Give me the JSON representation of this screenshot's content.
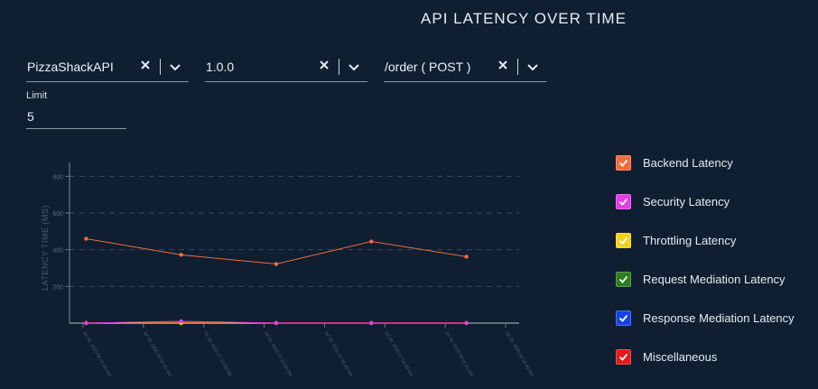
{
  "header": {
    "title": "API LATENCY OVER TIME"
  },
  "filters": {
    "api": {
      "value": "PizzaShackAPI"
    },
    "version": {
      "value": "1.0.0"
    },
    "resource": {
      "value": "/order ( POST )"
    },
    "limit": {
      "label": "Limit",
      "value": "5"
    }
  },
  "legend": [
    {
      "label": "Backend Latency",
      "color": "#f26b3c"
    },
    {
      "label": "Security Latency",
      "color": "#e23de6"
    },
    {
      "label": "Throttling Latency",
      "color": "#f2d21b"
    },
    {
      "label": "Request Mediation Latency",
      "color": "#2e7d1f"
    },
    {
      "label": "Response Mediation Latency",
      "color": "#1640e8"
    },
    {
      "label": "Miscellaneous",
      "color": "#e01b1b"
    }
  ],
  "chart_data": {
    "type": "line",
    "ylabel": "LATENCY TIME (MS)",
    "ylim": [
      0,
      900
    ],
    "yticks": [
      200,
      400,
      600,
      800
    ],
    "grid": true,
    "x": [
      "Jul 30, 2020 06:43:20 AM",
      "Jul 30, 2020 06:56:40 AM",
      "Jul 30, 2020 07:10:00 AM",
      "Jul 30, 2020 07:23:20 AM",
      "Jul 30, 2020 07:36:40 AM",
      "Jul 30, 2020 07:50:00 AM",
      "Jul 30, 2020 08:03:20 AM",
      "Jul 30, 2020 08:16:40 AM"
    ],
    "series": [
      {
        "name": "Backend Latency",
        "color": "#f26b3c",
        "points": [
          [
            "Jul 30, 2020 06:47:00 AM",
            460
          ],
          [
            "Jul 30, 2020 07:08:00 AM",
            372
          ],
          [
            "Jul 30, 2020 07:29:00 AM",
            322
          ],
          [
            "Jul 30, 2020 07:50:00 AM",
            445
          ],
          [
            "Jul 30, 2020 08:11:00 AM",
            362
          ]
        ]
      },
      {
        "name": "Security Latency",
        "color": "#e23de6",
        "points": [
          [
            "Jul 30, 2020 06:47:00 AM",
            0
          ],
          [
            "Jul 30, 2020 07:08:00 AM",
            10
          ],
          [
            "Jul 30, 2020 07:29:00 AM",
            0
          ],
          [
            "Jul 30, 2020 07:50:00 AM",
            0
          ],
          [
            "Jul 30, 2020 08:11:00 AM",
            0
          ]
        ]
      },
      {
        "name": "Throttling Latency",
        "color": "#f2d21b",
        "points": [
          [
            "Jul 30, 2020 06:47:00 AM",
            0
          ],
          [
            "Jul 30, 2020 07:08:00 AM",
            0
          ],
          [
            "Jul 30, 2020 07:29:00 AM",
            0
          ],
          [
            "Jul 30, 2020 07:50:00 AM",
            0
          ],
          [
            "Jul 30, 2020 08:11:00 AM",
            0
          ]
        ]
      },
      {
        "name": "Request Mediation Latency",
        "color": "#2e7d1f",
        "points": [
          [
            "Jul 30, 2020 06:47:00 AM",
            0
          ],
          [
            "Jul 30, 2020 07:08:00 AM",
            0
          ],
          [
            "Jul 30, 2020 07:29:00 AM",
            0
          ],
          [
            "Jul 30, 2020 07:50:00 AM",
            0
          ],
          [
            "Jul 30, 2020 08:11:00 AM",
            0
          ]
        ]
      },
      {
        "name": "Response Mediation Latency",
        "color": "#1640e8",
        "points": [
          [
            "Jul 30, 2020 06:47:00 AM",
            0
          ],
          [
            "Jul 30, 2020 07:08:00 AM",
            0
          ],
          [
            "Jul 30, 2020 07:29:00 AM",
            0
          ],
          [
            "Jul 30, 2020 07:50:00 AM",
            0
          ],
          [
            "Jul 30, 2020 08:11:00 AM",
            0
          ]
        ]
      },
      {
        "name": "Miscellaneous",
        "color": "#e01b1b",
        "points": [
          [
            "Jul 30, 2020 06:47:00 AM",
            2
          ],
          [
            "Jul 30, 2020 07:08:00 AM",
            4
          ],
          [
            "Jul 30, 2020 07:29:00 AM",
            2
          ],
          [
            "Jul 30, 2020 07:50:00 AM",
            2
          ],
          [
            "Jul 30, 2020 08:11:00 AM",
            2
          ]
        ]
      }
    ]
  }
}
